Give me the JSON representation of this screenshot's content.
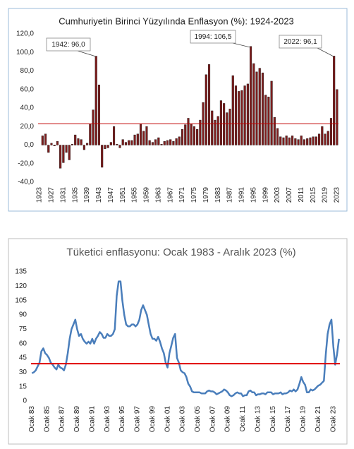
{
  "chart_data": [
    {
      "type": "bar",
      "title": "Cumhuriyetin Birinci Yüzyılında Enflasyon (%): 1924-2023",
      "categories": [
        "1923",
        null,
        null,
        null,
        "1927",
        null,
        null,
        null,
        "1931",
        null,
        null,
        null,
        "1935",
        null,
        null,
        null,
        "1939",
        null,
        null,
        null,
        "1943",
        null,
        null,
        null,
        "1947",
        null,
        null,
        null,
        "1951",
        null,
        null,
        null,
        "1955",
        null,
        null,
        null,
        "1959",
        null,
        null,
        null,
        "1963",
        null,
        null,
        null,
        "1967",
        null,
        null,
        null,
        "1971",
        null,
        null,
        null,
        "1975",
        null,
        null,
        null,
        "1979",
        null,
        null,
        null,
        "1983",
        null,
        null,
        null,
        "1987",
        null,
        null,
        null,
        "1991",
        null,
        null,
        null,
        "1995",
        null,
        null,
        null,
        "1999",
        null,
        null,
        null,
        "2003",
        null,
        null,
        null,
        "2007",
        null,
        null,
        null,
        "2011",
        null,
        null,
        null,
        "2015",
        null,
        null,
        null,
        "2019",
        null,
        null,
        null,
        "2023"
      ],
      "values": [
        null,
        10,
        12,
        -8,
        2,
        -1,
        4,
        -25,
        -19,
        -8,
        -16,
        1,
        11,
        7,
        6,
        -5,
        2,
        23,
        38,
        96,
        65,
        -24,
        -4,
        -3,
        3,
        20,
        1,
        -3,
        6,
        3,
        5,
        5,
        11,
        12,
        23,
        15,
        20,
        5,
        3,
        6,
        8,
        1,
        4,
        5,
        6,
        4,
        7,
        9,
        17,
        22,
        29,
        23,
        20,
        17,
        27,
        46,
        76,
        87,
        37,
        27,
        31,
        48,
        45,
        35,
        39,
        75,
        64,
        58,
        59,
        64,
        66,
        106.5,
        88,
        79,
        83,
        78,
        54,
        52,
        69,
        30,
        18,
        9,
        8,
        10,
        8,
        10,
        7,
        6,
        10,
        6,
        7,
        8,
        9,
        9,
        12,
        20,
        12,
        15,
        29,
        96.1,
        60
      ],
      "color": "#7f1d1d",
      "ylim": [
        -40,
        120
      ],
      "yticks": [
        {
          "value": -40,
          "label": "-40,0"
        },
        {
          "value": -20,
          "label": "-20,0"
        },
        {
          "value": 0,
          "label": "0,0"
        },
        {
          "value": 20,
          "label": "20,0"
        },
        {
          "value": 40,
          "label": "40,0"
        },
        {
          "value": 60,
          "label": "60,0"
        },
        {
          "value": 80,
          "label": "80,0"
        },
        {
          "value": 100,
          "label": "100,0"
        },
        {
          "value": 120,
          "label": "120,0"
        }
      ],
      "hline": {
        "value": 23,
        "color": "#c00000"
      },
      "annotations": [
        "1942: 96,0",
        "1994: 106,5",
        "2022: 96,1"
      ]
    },
    {
      "type": "line",
      "title": "Tüketici enflasyonu: Ocak 1983 - Aralık 2023 (%)",
      "categories": [
        "Ocak 83",
        null,
        null,
        null,
        null,
        null,
        null,
        null,
        "Ocak 85",
        null,
        null,
        null,
        null,
        null,
        null,
        null,
        "Ocak 87",
        null,
        null,
        null,
        null,
        null,
        null,
        null,
        "Ocak 89",
        null,
        null,
        null,
        null,
        null,
        null,
        null,
        "Ocak 91",
        null,
        null,
        null,
        null,
        null,
        null,
        null,
        "Ocak 93",
        null,
        null,
        null,
        null,
        null,
        null,
        null,
        "Ocak 95",
        null,
        null,
        null,
        null,
        null,
        null,
        null,
        "Ocak 97",
        null,
        null,
        null,
        null,
        null,
        null,
        null,
        "Ocak 99",
        null,
        null,
        null,
        null,
        null,
        null,
        null,
        "Ocak 01",
        null,
        null,
        null,
        null,
        null,
        null,
        null,
        "Ocak 03",
        null,
        null,
        null,
        null,
        null,
        null,
        null,
        "Ocak 05",
        null,
        null,
        null,
        null,
        null,
        null,
        null,
        "Ocak 07",
        null,
        null,
        null,
        null,
        null,
        null,
        null,
        "Ocak 09",
        null,
        null,
        null,
        null,
        null,
        null,
        null,
        "Ocak 11",
        null,
        null,
        null,
        null,
        null,
        null,
        null,
        "Ocak 13",
        null,
        null,
        null,
        null,
        null,
        null,
        null,
        "Ocak 15",
        null,
        null,
        null,
        null,
        null,
        null,
        null,
        "Ocak 17",
        null,
        null,
        null,
        null,
        null,
        null,
        null,
        "Ocak 19",
        null,
        null,
        null,
        null,
        null,
        null,
        null,
        "Ocak 21",
        null,
        null,
        null,
        null,
        null,
        null,
        null,
        "Ocak 23",
        null,
        null,
        null
      ],
      "values": [
        29,
        30,
        32,
        36,
        40,
        52,
        55,
        50,
        48,
        45,
        40,
        38,
        35,
        33,
        38,
        35,
        34,
        32,
        38,
        50,
        65,
        75,
        80,
        85,
        75,
        68,
        70,
        65,
        62,
        60,
        62,
        60,
        65,
        60,
        65,
        68,
        72,
        70,
        66,
        66,
        70,
        68,
        68,
        70,
        75,
        110,
        125,
        125,
        105,
        90,
        80,
        78,
        78,
        80,
        80,
        78,
        80,
        85,
        95,
        100,
        95,
        90,
        80,
        70,
        65,
        65,
        63,
        67,
        62,
        55,
        50,
        40,
        35,
        50,
        58,
        66,
        70,
        45,
        40,
        32,
        30,
        29,
        25,
        18,
        15,
        10,
        9,
        9,
        9,
        9,
        8,
        8,
        8,
        10,
        11,
        10,
        10,
        9,
        7,
        8,
        9,
        10,
        12,
        11,
        9,
        6,
        5,
        6,
        8,
        9,
        8,
        8,
        5,
        6,
        6,
        10,
        11,
        9,
        9,
        6,
        7,
        7,
        8,
        8,
        7,
        9,
        9,
        9,
        7,
        8,
        8,
        8,
        9,
        7,
        8,
        8,
        9,
        11,
        10,
        12,
        10,
        12,
        18,
        25,
        20,
        17,
        9,
        9,
        12,
        11,
        12,
        14,
        16,
        17,
        19,
        21,
        49,
        70,
        80,
        85,
        57,
        38,
        49,
        65
      ],
      "color": "#4a7ebb",
      "ylim": [
        0,
        135
      ],
      "yticks": [
        0,
        15,
        30,
        45,
        60,
        75,
        90,
        105,
        120,
        135
      ],
      "hline": {
        "value": 39,
        "color": "#e00000"
      }
    }
  ]
}
